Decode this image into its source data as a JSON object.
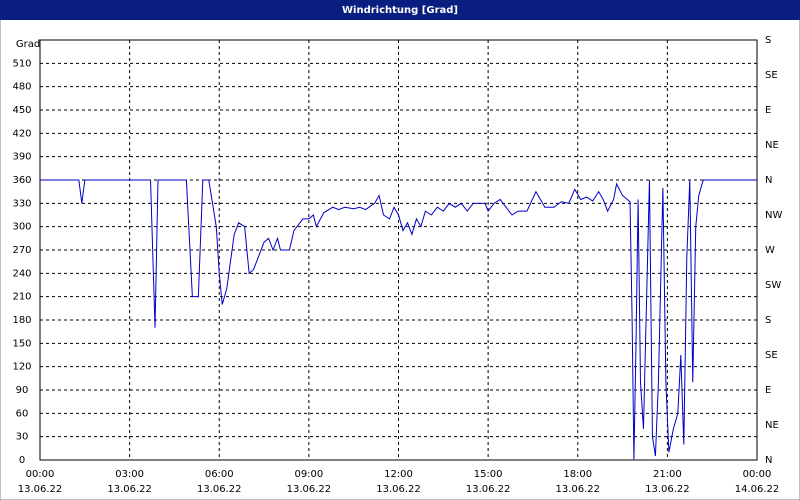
{
  "chart_data": {
    "type": "line",
    "title": "Windrichtung [Grad]",
    "ylabel": "Grad",
    "xlim": [
      0,
      24
    ],
    "xticks": [
      {
        "value": 0,
        "label": [
          "00:00",
          "13.06.22"
        ]
      },
      {
        "value": 3,
        "label": [
          "03:00",
          "13.06.22"
        ]
      },
      {
        "value": 6,
        "label": [
          "06:00",
          "13.06.22"
        ]
      },
      {
        "value": 9,
        "label": [
          "09:00",
          "13.06.22"
        ]
      },
      {
        "value": 12,
        "label": [
          "12:00",
          "13.06.22"
        ]
      },
      {
        "value": 15,
        "label": [
          "15:00",
          "13.06.22"
        ]
      },
      {
        "value": 18,
        "label": [
          "18:00",
          "13.06.22"
        ]
      },
      {
        "value": 21,
        "label": [
          "21:00",
          "13.06.22"
        ]
      },
      {
        "value": 24,
        "label": [
          "00:00",
          "14.06.22"
        ]
      }
    ],
    "ylim": [
      0,
      540
    ],
    "yticks": [
      0,
      30,
      60,
      90,
      120,
      150,
      180,
      210,
      240,
      270,
      300,
      330,
      360,
      390,
      420,
      450,
      480,
      510
    ],
    "y2lim": [
      0,
      540
    ],
    "y2ticks": [
      {
        "value": 0,
        "label": "N"
      },
      {
        "value": 45,
        "label": "NE"
      },
      {
        "value": 90,
        "label": "E"
      },
      {
        "value": 135,
        "label": "SE"
      },
      {
        "value": 180,
        "label": "S"
      },
      {
        "value": 225,
        "label": "SW"
      },
      {
        "value": 270,
        "label": "W"
      },
      {
        "value": 315,
        "label": "NW"
      },
      {
        "value": 360,
        "label": "N"
      },
      {
        "value": 405,
        "label": "NE"
      },
      {
        "value": 450,
        "label": "E"
      },
      {
        "value": 495,
        "label": "SE"
      },
      {
        "value": 540,
        "label": "S"
      }
    ],
    "grid": true,
    "series": [
      {
        "color": "#0000c8",
        "x": [
          0,
          1.3,
          1.4,
          1.5,
          3.7,
          3.85,
          3.95,
          4.9,
          5.1,
          5.3,
          5.45,
          5.65,
          5.9,
          6.0,
          6.1,
          6.25,
          6.5,
          6.65,
          6.85,
          7.0,
          7.15,
          7.5,
          7.65,
          7.8,
          7.95,
          8.05,
          8.35,
          8.5,
          8.8,
          9.0,
          9.15,
          9.25,
          9.5,
          9.8,
          10.0,
          10.2,
          10.5,
          10.7,
          10.9,
          11.2,
          11.35,
          11.5,
          11.7,
          11.85,
          12.0,
          12.15,
          12.3,
          12.45,
          12.6,
          12.75,
          12.9,
          13.1,
          13.3,
          13.5,
          13.7,
          13.9,
          14.1,
          14.3,
          14.5,
          14.7,
          14.9,
          15.0,
          15.2,
          15.4,
          15.6,
          15.8,
          16.0,
          16.3,
          16.6,
          16.9,
          17.2,
          17.45,
          17.7,
          17.9,
          18.1,
          18.3,
          18.5,
          18.7,
          18.85,
          19.0,
          19.2,
          19.3,
          19.5,
          19.75,
          19.82,
          19.88,
          19.95,
          20.02,
          20.1,
          20.2,
          20.3,
          20.4,
          20.5,
          20.6,
          20.7,
          20.85,
          20.95,
          21.05,
          21.2,
          21.35,
          21.45,
          21.55,
          21.65,
          21.75,
          21.85,
          21.95,
          22.05,
          22.2,
          24
        ],
        "values": [
          360,
          360,
          330,
          360,
          360,
          170,
          360,
          360,
          210,
          210,
          360,
          360,
          300,
          240,
          200,
          220,
          290,
          305,
          300,
          240,
          245,
          280,
          285,
          270,
          285,
          270,
          270,
          295,
          310,
          310,
          315,
          300,
          318,
          325,
          322,
          325,
          323,
          325,
          322,
          330,
          340,
          315,
          310,
          325,
          315,
          295,
          305,
          290,
          310,
          300,
          320,
          315,
          325,
          320,
          330,
          325,
          330,
          320,
          330,
          330,
          330,
          320,
          330,
          335,
          325,
          315,
          320,
          320,
          345,
          325,
          325,
          332,
          330,
          348,
          335,
          338,
          333,
          345,
          335,
          320,
          335,
          355,
          340,
          332,
          180,
          0,
          150,
          335,
          100,
          40,
          200,
          360,
          30,
          5,
          100,
          350,
          100,
          10,
          40,
          60,
          135,
          20,
          260,
          360,
          100,
          300,
          340,
          360,
          360
        ]
      }
    ]
  }
}
